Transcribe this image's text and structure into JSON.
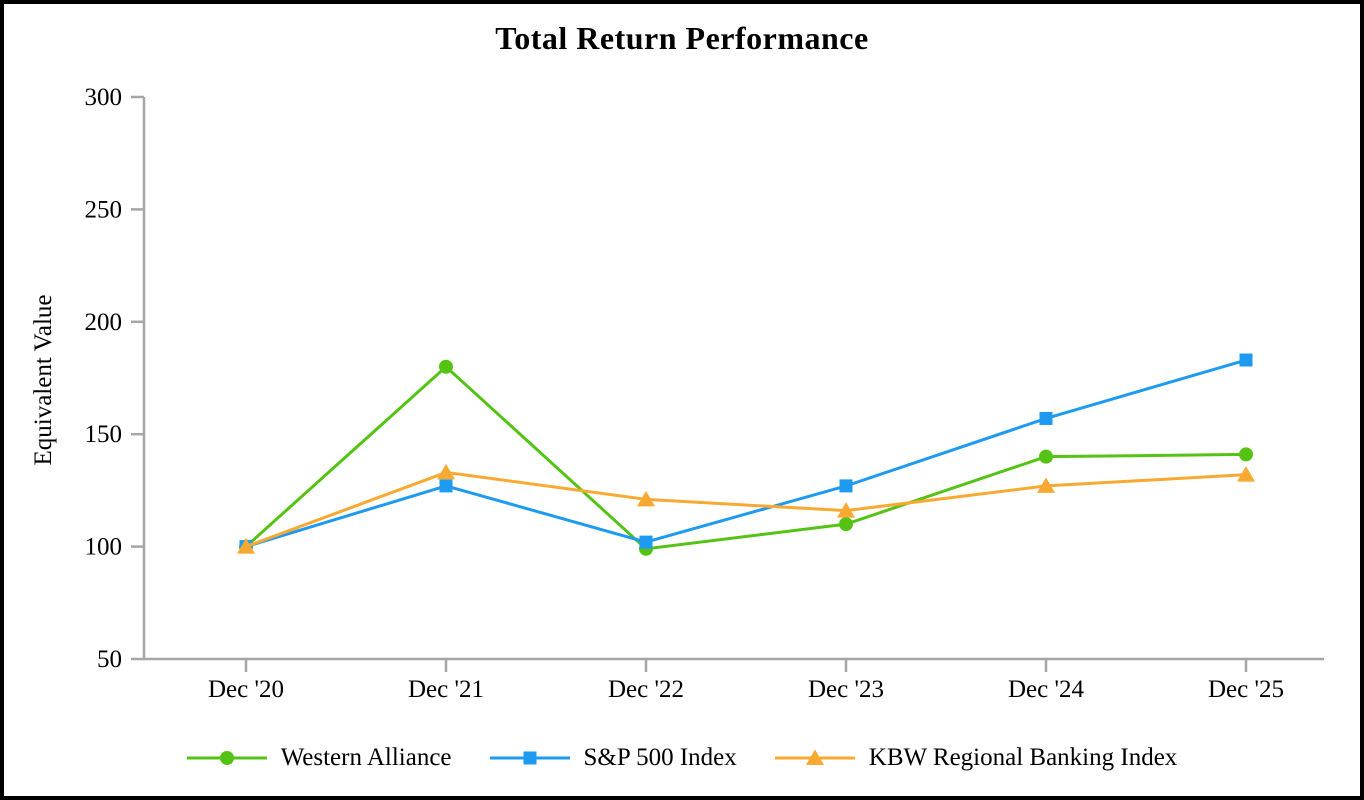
{
  "chart_data": {
    "type": "line",
    "title": "Total Return Performance",
    "ylabel": "Equivalent Value",
    "xlabel": "",
    "categories": [
      "Dec '20",
      "Dec '21",
      "Dec '22",
      "Dec '23",
      "Dec '24",
      "Dec '25"
    ],
    "yticks": [
      300,
      250,
      200,
      150,
      100,
      50
    ],
    "ylim": [
      50,
      300
    ],
    "grid": false,
    "legend_position": "bottom",
    "axis_color": "#A6A6A6",
    "text_color": "#000000",
    "series": [
      {
        "name": "Western Alliance",
        "marker": "circle",
        "color": "#55C314",
        "values": [
          100,
          180,
          99,
          110,
          140,
          141
        ]
      },
      {
        "name": "S&P 500 Index",
        "marker": "square",
        "color": "#1E9BF0",
        "values": [
          100,
          127,
          102,
          127,
          157,
          183
        ]
      },
      {
        "name": "KBW Regional Banking Index",
        "marker": "triangle",
        "color": "#F8A932",
        "values": [
          100,
          133,
          121,
          116,
          127,
          132
        ]
      }
    ]
  }
}
